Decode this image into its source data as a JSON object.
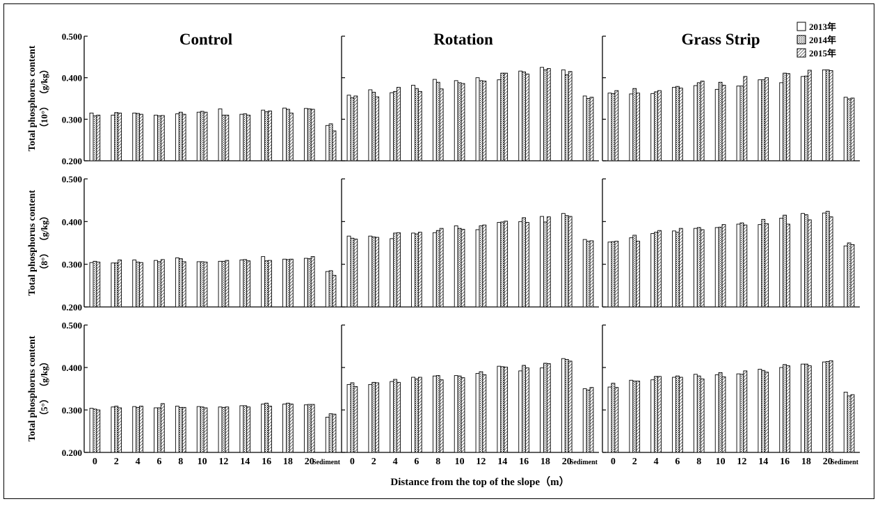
{
  "figure": {
    "xlabel": "Distance from the top of the slope（m）",
    "legend": {
      "position": "top-right",
      "entries": [
        {
          "label": "2013年",
          "pattern": "blank"
        },
        {
          "label": "2014年",
          "pattern": "dotted"
        },
        {
          "label": "2015年",
          "pattern": "hatched"
        }
      ]
    },
    "ylabels": [
      {
        "main": "Total phosphorus content",
        "sub": "（10°）  （g/kg）"
      },
      {
        "main": "Total phosphorus content",
        "sub": "（8°）  （g/kg）"
      },
      {
        "main": "Total phosphorus content",
        "sub": "（5°）  （g/kg）"
      }
    ]
  },
  "chart_data": [
    {
      "type": "bar",
      "title": "Control",
      "row": 0,
      "col": 0,
      "ylim": [
        0.2,
        0.5
      ],
      "yticks": [
        "0.200",
        "0.300",
        "0.400",
        "0.500"
      ],
      "categories": [
        "0",
        "2",
        "4",
        "6",
        "8",
        "10",
        "12",
        "14",
        "16",
        "18",
        "20",
        "Sediment"
      ],
      "series": [
        {
          "name": "2013年",
          "values": [
            0.315,
            0.31,
            0.315,
            0.31,
            0.313,
            0.317,
            0.325,
            0.312,
            0.322,
            0.327,
            0.326,
            0.285
          ]
        },
        {
          "name": "2014年",
          "values": [
            0.308,
            0.316,
            0.314,
            0.308,
            0.317,
            0.319,
            0.31,
            0.313,
            0.318,
            0.324,
            0.325,
            0.289
          ]
        },
        {
          "name": "2015年",
          "values": [
            0.31,
            0.315,
            0.312,
            0.309,
            0.312,
            0.317,
            0.31,
            0.31,
            0.32,
            0.315,
            0.324,
            0.272
          ]
        }
      ]
    },
    {
      "type": "bar",
      "title": "Rotation",
      "row": 0,
      "col": 1,
      "ylim": [
        0.2,
        0.5
      ],
      "yticks": [
        "0.200",
        "0.300",
        "0.400",
        "0.500"
      ],
      "categories": [
        "0",
        "2",
        "4",
        "6",
        "8",
        "10",
        "12",
        "14",
        "16",
        "18",
        "20",
        "Sediment"
      ],
      "series": [
        {
          "name": "2013年",
          "values": [
            0.358,
            0.371,
            0.364,
            0.382,
            0.396,
            0.393,
            0.4,
            0.395,
            0.416,
            0.425,
            0.419,
            0.356
          ]
        },
        {
          "name": "2014年",
          "values": [
            0.352,
            0.365,
            0.367,
            0.374,
            0.389,
            0.388,
            0.393,
            0.411,
            0.414,
            0.419,
            0.407,
            0.35
          ]
        },
        {
          "name": "2015年",
          "values": [
            0.356,
            0.354,
            0.377,
            0.367,
            0.373,
            0.386,
            0.392,
            0.411,
            0.409,
            0.422,
            0.415,
            0.353
          ]
        }
      ]
    },
    {
      "type": "bar",
      "title": "Grass Strip",
      "row": 0,
      "col": 2,
      "ylim": [
        0.2,
        0.5
      ],
      "yticks": [
        "0.200",
        "0.300",
        "0.400",
        "0.500"
      ],
      "categories": [
        "0",
        "2",
        "4",
        "6",
        "8",
        "10",
        "12",
        "14",
        "16",
        "18",
        "20",
        "Sediment"
      ],
      "series": [
        {
          "name": "2013年",
          "values": [
            0.363,
            0.361,
            0.362,
            0.377,
            0.381,
            0.372,
            0.38,
            0.395,
            0.388,
            0.403,
            0.419,
            0.353
          ]
        },
        {
          "name": "2014年",
          "values": [
            0.362,
            0.374,
            0.366,
            0.379,
            0.388,
            0.389,
            0.38,
            0.395,
            0.411,
            0.404,
            0.419,
            0.349
          ]
        },
        {
          "name": "2015年",
          "values": [
            0.369,
            0.363,
            0.369,
            0.375,
            0.392,
            0.382,
            0.403,
            0.4,
            0.41,
            0.418,
            0.417,
            0.351
          ]
        }
      ]
    },
    {
      "type": "bar",
      "row": 1,
      "col": 0,
      "ylim": [
        0.2,
        0.5
      ],
      "yticks": [
        "0.200",
        "0.300",
        "0.400",
        "0.500"
      ],
      "categories": [
        "0",
        "2",
        "4",
        "6",
        "8",
        "10",
        "12",
        "14",
        "16",
        "18",
        "20",
        "Sediment"
      ],
      "series": [
        {
          "name": "2013年",
          "values": [
            0.304,
            0.303,
            0.31,
            0.309,
            0.315,
            0.306,
            0.307,
            0.31,
            0.318,
            0.312,
            0.314,
            0.283
          ]
        },
        {
          "name": "2014年",
          "values": [
            0.307,
            0.303,
            0.305,
            0.306,
            0.313,
            0.306,
            0.307,
            0.311,
            0.308,
            0.311,
            0.313,
            0.285
          ]
        },
        {
          "name": "2015年",
          "values": [
            0.305,
            0.31,
            0.304,
            0.311,
            0.306,
            0.305,
            0.309,
            0.308,
            0.309,
            0.312,
            0.318,
            0.274
          ]
        }
      ]
    },
    {
      "type": "bar",
      "row": 1,
      "col": 1,
      "ylim": [
        0.2,
        0.5
      ],
      "yticks": [
        "0.200",
        "0.300",
        "0.400",
        "0.500"
      ],
      "categories": [
        "0",
        "2",
        "4",
        "6",
        "8",
        "10",
        "12",
        "14",
        "16",
        "18",
        "20",
        "Sediment"
      ],
      "series": [
        {
          "name": "2013年",
          "values": [
            0.366,
            0.366,
            0.36,
            0.373,
            0.374,
            0.39,
            0.381,
            0.398,
            0.4,
            0.412,
            0.419,
            0.358
          ]
        },
        {
          "name": "2014年",
          "values": [
            0.361,
            0.364,
            0.373,
            0.371,
            0.379,
            0.384,
            0.39,
            0.399,
            0.409,
            0.399,
            0.414,
            0.354
          ]
        },
        {
          "name": "2015年",
          "values": [
            0.359,
            0.363,
            0.374,
            0.375,
            0.384,
            0.382,
            0.392,
            0.401,
            0.398,
            0.411,
            0.412,
            0.355
          ]
        }
      ]
    },
    {
      "type": "bar",
      "row": 1,
      "col": 2,
      "ylim": [
        0.2,
        0.5
      ],
      "yticks": [
        "0.200",
        "0.300",
        "0.400",
        "0.500"
      ],
      "categories": [
        "0",
        "2",
        "4",
        "6",
        "8",
        "10",
        "12",
        "14",
        "16",
        "18",
        "20",
        "Sediment"
      ],
      "series": [
        {
          "name": "2013年",
          "values": [
            0.352,
            0.362,
            0.372,
            0.378,
            0.384,
            0.386,
            0.394,
            0.393,
            0.408,
            0.419,
            0.42,
            0.343
          ]
        },
        {
          "name": "2014年",
          "values": [
            0.353,
            0.368,
            0.375,
            0.375,
            0.386,
            0.387,
            0.397,
            0.405,
            0.415,
            0.416,
            0.424,
            0.35
          ]
        },
        {
          "name": "2015年",
          "values": [
            0.354,
            0.354,
            0.379,
            0.384,
            0.381,
            0.393,
            0.392,
            0.395,
            0.394,
            0.404,
            0.411,
            0.346
          ]
        }
      ]
    },
    {
      "type": "bar",
      "row": 2,
      "col": 0,
      "ylim": [
        0.2,
        0.5
      ],
      "yticks": [
        "0.200",
        "0.300",
        "0.400",
        "0.500"
      ],
      "categories": [
        "0",
        "2",
        "4",
        "6",
        "8",
        "10",
        "12",
        "14",
        "16",
        "18",
        "20",
        "Sediment"
      ],
      "series": [
        {
          "name": "2013年",
          "values": [
            0.304,
            0.307,
            0.308,
            0.305,
            0.309,
            0.308,
            0.307,
            0.31,
            0.314,
            0.314,
            0.312,
            0.283
          ]
        },
        {
          "name": "2014年",
          "values": [
            0.302,
            0.309,
            0.306,
            0.305,
            0.306,
            0.307,
            0.306,
            0.31,
            0.316,
            0.316,
            0.313,
            0.291
          ]
        },
        {
          "name": "2015年",
          "values": [
            0.3,
            0.305,
            0.309,
            0.315,
            0.306,
            0.305,
            0.307,
            0.307,
            0.309,
            0.314,
            0.313,
            0.29
          ]
        }
      ]
    },
    {
      "type": "bar",
      "row": 2,
      "col": 1,
      "ylim": [
        0.2,
        0.5
      ],
      "yticks": [
        "0.200",
        "0.300",
        "0.400",
        "0.500"
      ],
      "categories": [
        "0",
        "2",
        "4",
        "6",
        "8",
        "10",
        "12",
        "14",
        "16",
        "18",
        "20",
        "Sediment"
      ],
      "series": [
        {
          "name": "2013年",
          "values": [
            0.36,
            0.36,
            0.367,
            0.377,
            0.38,
            0.381,
            0.386,
            0.403,
            0.392,
            0.399,
            0.421,
            0.35
          ]
        },
        {
          "name": "2014年",
          "values": [
            0.364,
            0.365,
            0.372,
            0.373,
            0.381,
            0.38,
            0.39,
            0.402,
            0.405,
            0.41,
            0.419,
            0.347
          ]
        },
        {
          "name": "2015年",
          "values": [
            0.355,
            0.364,
            0.365,
            0.377,
            0.371,
            0.376,
            0.383,
            0.401,
            0.399,
            0.409,
            0.415,
            0.353
          ]
        }
      ]
    },
    {
      "type": "bar",
      "row": 2,
      "col": 2,
      "ylim": [
        0.2,
        0.5
      ],
      "yticks": [
        "0.200",
        "0.300",
        "0.400",
        "0.500"
      ],
      "categories": [
        "0",
        "2",
        "4",
        "6",
        "8",
        "10",
        "12",
        "14",
        "16",
        "18",
        "20",
        "Sediment"
      ],
      "series": [
        {
          "name": "2013年",
          "values": [
            0.354,
            0.37,
            0.371,
            0.377,
            0.384,
            0.383,
            0.385,
            0.396,
            0.4,
            0.408,
            0.413,
            0.342
          ]
        },
        {
          "name": "2014年",
          "values": [
            0.363,
            0.368,
            0.379,
            0.38,
            0.38,
            0.388,
            0.384,
            0.393,
            0.407,
            0.408,
            0.414,
            0.333
          ]
        },
        {
          "name": "2015年",
          "values": [
            0.353,
            0.368,
            0.379,
            0.377,
            0.373,
            0.378,
            0.392,
            0.389,
            0.404,
            0.404,
            0.416,
            0.336
          ]
        }
      ]
    }
  ]
}
